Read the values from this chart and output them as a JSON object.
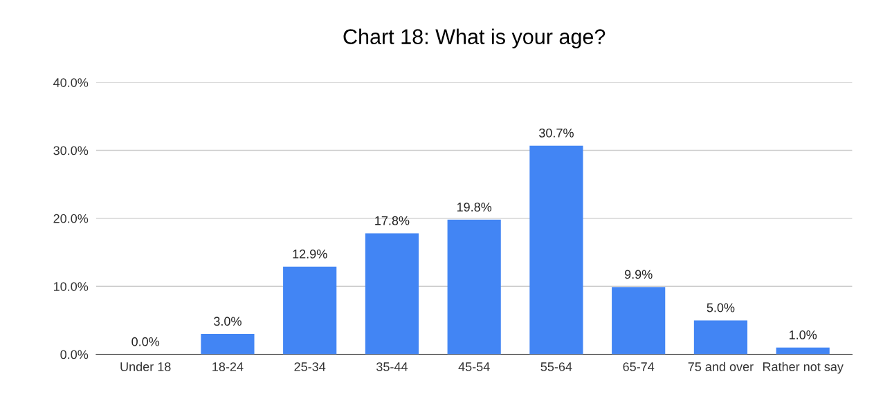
{
  "chart_data": {
    "type": "bar",
    "title": "Chart 18: What is your age?",
    "categories": [
      "Under 18",
      "18-24",
      "25-34",
      "35-44",
      "45-54",
      "55-64",
      "65-74",
      "75 and over",
      "Rather not say"
    ],
    "values": [
      0.0,
      3.0,
      12.9,
      17.8,
      19.8,
      30.7,
      9.9,
      5.0,
      1.0
    ],
    "value_labels": [
      "0.0%",
      "3.0%",
      "12.9%",
      "17.8%",
      "19.8%",
      "30.7%",
      "9.9%",
      "5.0%",
      "1.0%"
    ],
    "color": "#4285f4",
    "ylim": [
      0,
      40
    ],
    "yticks": [
      {
        "value": 0,
        "label": "0.0%"
      },
      {
        "value": 10,
        "label": "10.0%"
      },
      {
        "value": 20,
        "label": "20.0%"
      },
      {
        "value": 30,
        "label": "30.0%"
      },
      {
        "value": 40,
        "label": "40.0%"
      }
    ],
    "grid": "y"
  }
}
